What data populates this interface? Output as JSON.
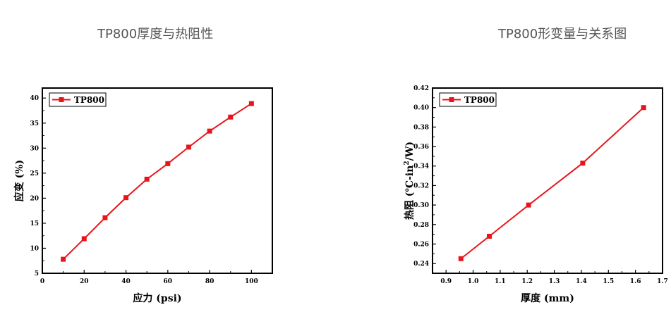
{
  "headings": {
    "left": "TP800厚度与热阻性",
    "right": "TP800形变量与关系图"
  },
  "chart_data": [
    {
      "type": "line",
      "xlabel": "应力 (psi)",
      "ylabel": "应变 (%)",
      "xlim": [
        0,
        110
      ],
      "ylim": [
        5,
        42
      ],
      "xticks": [
        "0",
        "20",
        "40",
        "60",
        "80",
        "100"
      ],
      "yticks": [
        "5",
        "10",
        "15",
        "20",
        "25",
        "30",
        "35",
        "40"
      ],
      "grid": false,
      "legend_position": "top-left",
      "series": [
        {
          "name": "TP800",
          "color": "#e8141a",
          "marker": "square",
          "x": [
            10,
            20,
            30,
            40,
            50,
            60,
            70,
            80,
            90,
            100
          ],
          "y": [
            7.8,
            11.9,
            16.1,
            20.1,
            23.8,
            26.9,
            30.2,
            33.4,
            36.2,
            38.9
          ]
        }
      ]
    },
    {
      "type": "line",
      "xlabel": "厚度 (mm)",
      "ylabel_main": "热阻 (℃-in",
      "ylabel_sup": "2",
      "ylabel_end": "/W)",
      "xlim": [
        0.85,
        1.7
      ],
      "ylim": [
        0.23,
        0.42
      ],
      "xticks": [
        "0.9",
        "1.0",
        "1.1",
        "1.2",
        "1.3",
        "1.4",
        "1.5",
        "1.6",
        "1.7"
      ],
      "yticks": [
        "0.24",
        "0.26",
        "0.28",
        "0.30",
        "0.32",
        "0.34",
        "0.36",
        "0.38",
        "0.40",
        "0.42"
      ],
      "grid": false,
      "legend_position": "top-left",
      "series": [
        {
          "name": "TP800",
          "color": "#e8141a",
          "marker": "square",
          "x": [
            0.955,
            1.06,
            1.205,
            1.405,
            1.63
          ],
          "y": [
            0.245,
            0.268,
            0.3,
            0.343,
            0.4
          ]
        }
      ]
    }
  ]
}
